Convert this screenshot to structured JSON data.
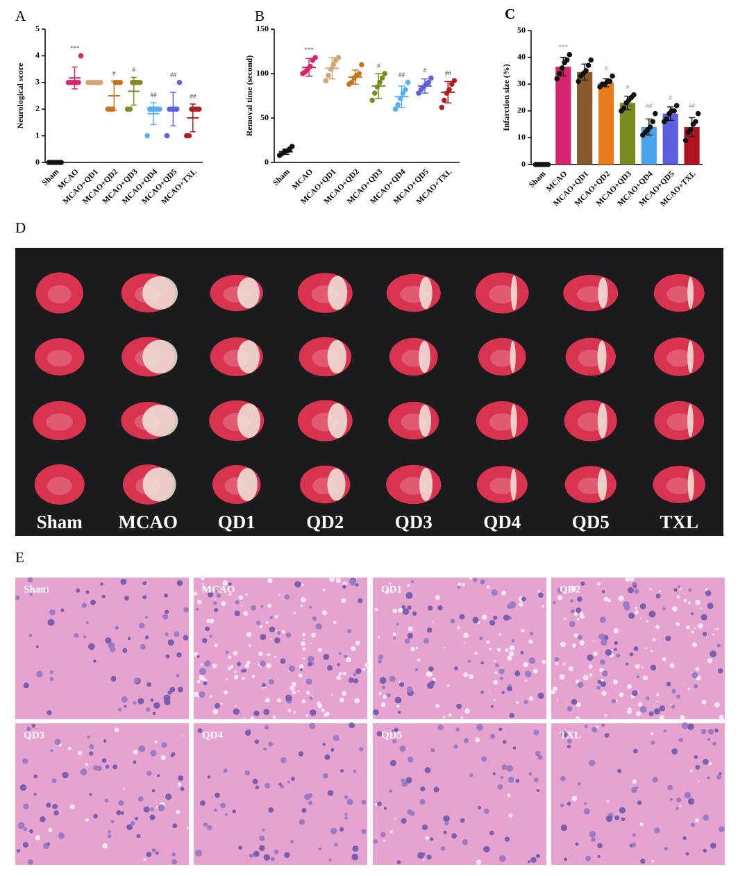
{
  "chart_data": [
    {
      "type": "dotplot",
      "panel": "A",
      "ylabel": "Neurological score",
      "categories": [
        "Sham",
        "MCAO",
        "MCAO+QD1",
        "MCAO+QD2",
        "MCAO+QD3",
        "MCAO+QD4",
        "MCAO+QD5",
        "MCAO+TXL"
      ],
      "ylim": [
        0,
        5
      ],
      "yticks": [
        0,
        1,
        2,
        3,
        4,
        5
      ],
      "groups": [
        {
          "color": "#111111",
          "mean": 0,
          "sd": 0,
          "points": [
            0,
            0,
            0,
            0,
            0,
            0
          ],
          "annotation": null
        },
        {
          "color": "#d6246f",
          "mean": 3.17,
          "sd": 0.41,
          "points": [
            3,
            3,
            3,
            3,
            3,
            4
          ],
          "annotation": "***"
        },
        {
          "color": "#d4a373",
          "mean": 3,
          "sd": 0,
          "points": [
            3,
            3,
            3,
            3,
            3,
            3
          ],
          "annotation": null
        },
        {
          "color": "#c8741d",
          "mean": 2.5,
          "sd": 0.55,
          "points": [
            2,
            2,
            2,
            3,
            3,
            3
          ],
          "annotation": "#"
        },
        {
          "color": "#7e8a1e",
          "mean": 2.67,
          "sd": 0.52,
          "points": [
            2,
            2,
            3,
            3,
            3,
            3
          ],
          "annotation": "#"
        },
        {
          "color": "#58aef0",
          "mean": 1.83,
          "sd": 0.41,
          "points": [
            1,
            2,
            2,
            2,
            2,
            2
          ],
          "annotation": "##"
        },
        {
          "color": "#5b5fe0",
          "mean": 2,
          "sd": 0.63,
          "points": [
            1,
            2,
            2,
            2,
            2,
            3
          ],
          "annotation": "##"
        },
        {
          "color": "#b01e24",
          "mean": 1.67,
          "sd": 0.52,
          "points": [
            1,
            1,
            2,
            2,
            2,
            2
          ],
          "annotation": "##"
        }
      ]
    },
    {
      "type": "dotplot",
      "panel": "B",
      "ylabel": "Removal time (second)",
      "categories": [
        "Sham",
        "MCAO",
        "MCAO+QD1",
        "MCAO+QD2",
        "MCAO+QD3",
        "MCAO+QD4",
        "MCAO+QD5",
        "MCAO+TXL"
      ],
      "ylim": [
        0,
        150
      ],
      "yticks": [
        0,
        50,
        100,
        150
      ],
      "groups": [
        {
          "color": "#111111",
          "mean": 12,
          "sd": 3,
          "points": [
            8,
            10,
            12,
            13,
            15,
            18
          ],
          "annotation": null
        },
        {
          "color": "#d6246f",
          "mean": 107,
          "sd": 10,
          "points": [
            100,
            102,
            105,
            108,
            115,
            118
          ],
          "annotation": "***"
        },
        {
          "color": "#d4a373",
          "mean": 106,
          "sd": 12,
          "points": [
            92,
            98,
            105,
            110,
            115,
            118
          ],
          "annotation": null
        },
        {
          "color": "#c8741d",
          "mean": 96,
          "sd": 8,
          "points": [
            88,
            90,
            95,
            98,
            100,
            110
          ],
          "annotation": null
        },
        {
          "color": "#7e8a1e",
          "mean": 86,
          "sd": 14,
          "points": [
            70,
            78,
            85,
            90,
            95,
            100
          ],
          "annotation": "#"
        },
        {
          "color": "#58aef0",
          "mean": 74,
          "sd": 12,
          "points": [
            60,
            65,
            72,
            78,
            82,
            90
          ],
          "annotation": "##"
        },
        {
          "color": "#5b5fe0",
          "mean": 86,
          "sd": 8,
          "points": [
            78,
            82,
            85,
            88,
            90,
            95
          ],
          "annotation": "#"
        },
        {
          "color": "#b01e24",
          "mean": 79,
          "sd": 12,
          "points": [
            62,
            70,
            78,
            82,
            88,
            92
          ],
          "annotation": "##"
        }
      ]
    },
    {
      "type": "bar",
      "panel": "C",
      "ylabel": "Infarction size (%)",
      "categories": [
        "Sham",
        "MCAO",
        "MCAO+QD1",
        "MCAO+QD2",
        "MCAO+QD3",
        "MCAO+QD4",
        "MCAO+QD5",
        "MCAO+TXL"
      ],
      "ylim": [
        0,
        50
      ],
      "yticks": [
        0,
        10,
        20,
        30,
        40,
        50
      ],
      "groups": [
        {
          "color": "#111111",
          "mean": 0,
          "sd": 0,
          "points": [
            0,
            0,
            0,
            0,
            0,
            0
          ],
          "annotation": null
        },
        {
          "color": "#d6246f",
          "mean": 36.5,
          "sd": 3.5,
          "points": [
            32,
            34,
            36,
            38,
            39,
            41
          ],
          "annotation": "***"
        },
        {
          "color": "#8b5a2b",
          "mean": 34.5,
          "sd": 3,
          "points": [
            31,
            33,
            34,
            35,
            37,
            39
          ],
          "annotation": null
        },
        {
          "color": "#e87d1e",
          "mean": 30.5,
          "sd": 1.5,
          "points": [
            29,
            30,
            30,
            31,
            31,
            33
          ],
          "annotation": "#"
        },
        {
          "color": "#7b8a1e",
          "mean": 23,
          "sd": 2.5,
          "points": [
            20,
            21,
            23,
            24,
            25,
            26
          ],
          "annotation": "#"
        },
        {
          "color": "#4aa3e8",
          "mean": 14,
          "sd": 3,
          "points": [
            11,
            12,
            13,
            14,
            16,
            19
          ],
          "annotation": "##"
        },
        {
          "color": "#5a5fe0",
          "mean": 19,
          "sd": 2.5,
          "points": [
            16,
            17,
            19,
            20,
            20,
            22
          ],
          "annotation": "#"
        },
        {
          "color": "#b0141e",
          "mean": 14,
          "sd": 3.5,
          "points": [
            9,
            12,
            13,
            15,
            16,
            19
          ],
          "annotation": "##"
        }
      ]
    }
  ],
  "panel_d": {
    "label": "D",
    "groups": [
      "Sham",
      "MCAO",
      "QD1",
      "QD2",
      "QD3",
      "QD4",
      "QD5",
      "TXL"
    ]
  },
  "panel_e": {
    "label": "E",
    "images": [
      "Sham",
      "MCAO",
      "QD1",
      "QD2",
      "QD3",
      "QD4",
      "QD5",
      "TXL"
    ]
  }
}
